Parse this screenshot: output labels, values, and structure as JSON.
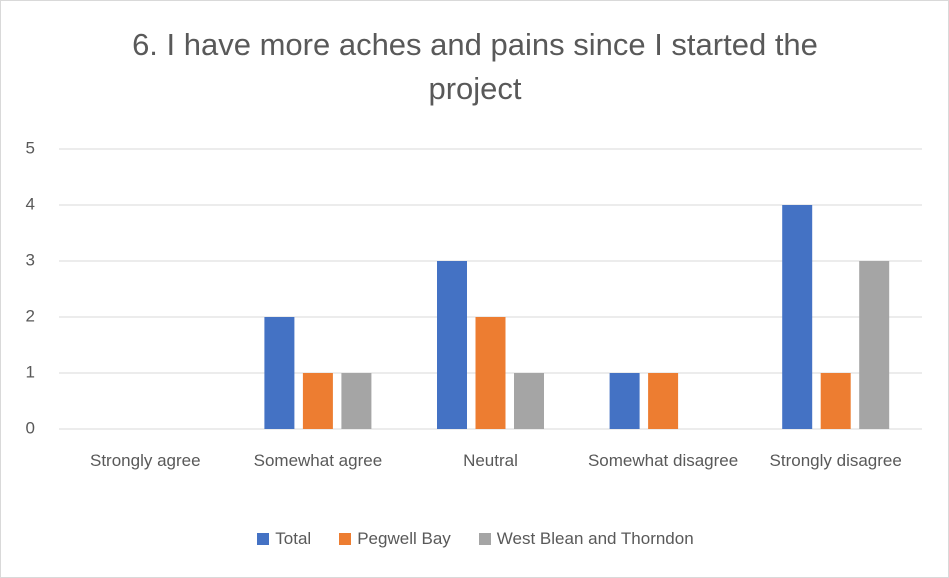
{
  "chart_data": {
    "type": "bar",
    "title": "6. I have more aches and pains since I started the project",
    "categories": [
      "Strongly agree",
      "Somewhat agree",
      "Neutral",
      "Somewhat disagree",
      "Strongly disagree"
    ],
    "series": [
      {
        "name": "Total",
        "color": "#4472c4",
        "values": [
          0,
          2,
          3,
          1,
          4
        ]
      },
      {
        "name": "Pegwell Bay",
        "color": "#ed7d31",
        "values": [
          0,
          1,
          2,
          1,
          1
        ]
      },
      {
        "name": "West Blean and Thorndon",
        "color": "#a5a5a5",
        "values": [
          0,
          1,
          1,
          0,
          3
        ]
      }
    ],
    "ylim": [
      0,
      5
    ],
    "yticks": [
      0,
      1,
      2,
      3,
      4,
      5
    ],
    "grid": true,
    "legend": "bottom"
  }
}
